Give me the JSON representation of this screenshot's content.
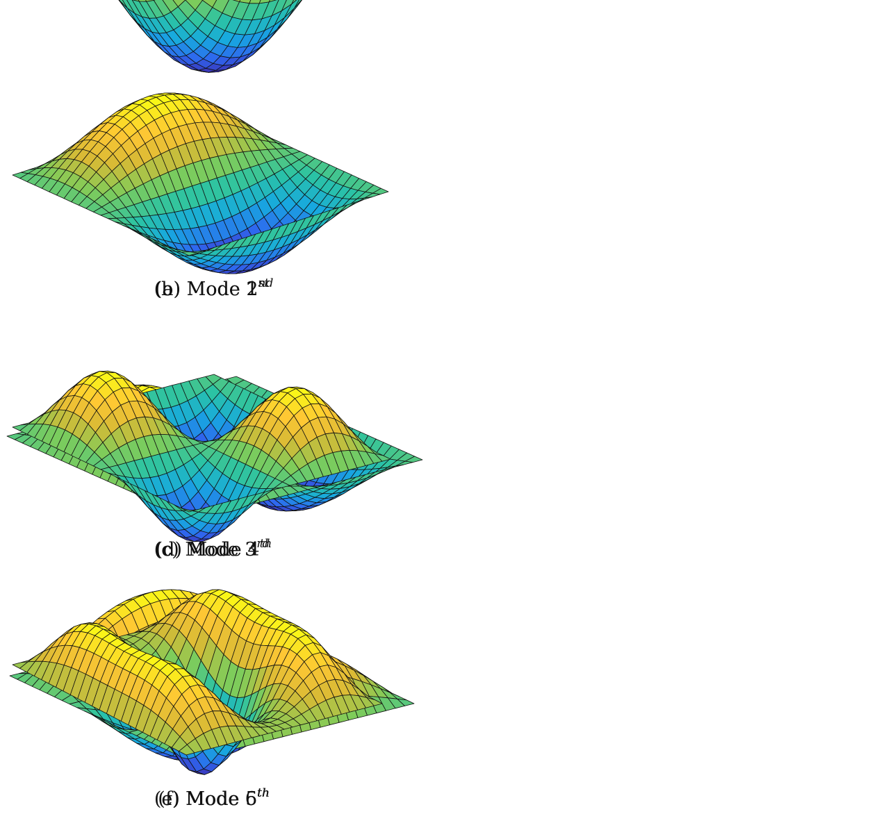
{
  "figure": {
    "panels": [
      {
        "tag": "(a)",
        "word": "Mode",
        "num": "1",
        "sup": "st"
      },
      {
        "tag": "(b)",
        "word": "Mode",
        "num": "2",
        "sup": "nd"
      },
      {
        "tag": "(c)",
        "word": "Mode",
        "num": "3",
        "sup": "rd"
      },
      {
        "tag": "(d)",
        "word": "Mode",
        "num": "4",
        "sup": "th"
      },
      {
        "tag": "(e)",
        "word": "Mode",
        "num": "5",
        "sup": "th"
      },
      {
        "tag": "(f)",
        "word": "Mode",
        "num": "6",
        "sup": "th"
      }
    ],
    "colormap": [
      "#3e26a8",
      "#2f66ef",
      "#17a9df",
      "#2bc3a4",
      "#7fcc5a",
      "#d8ba35",
      "#fec734",
      "#f9fb15"
    ],
    "gridline_color": "#111111"
  }
}
